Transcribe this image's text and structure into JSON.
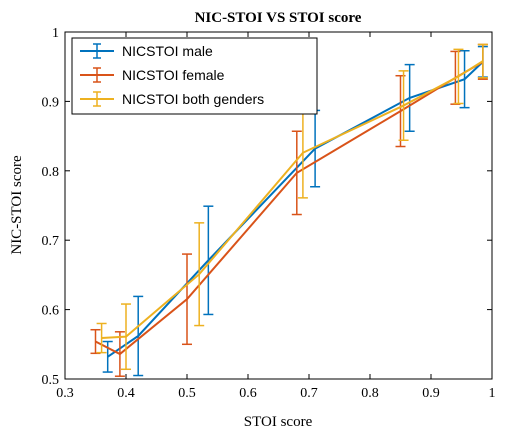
{
  "chart_data": {
    "type": "line",
    "title": "NIC-STOI VS STOI score",
    "xlabel": "STOI score",
    "ylabel": "NIC-STOI score",
    "xlim": [
      0.3,
      1
    ],
    "ylim": [
      0.5,
      1
    ],
    "xticks": [
      "0.3",
      "0.4",
      "0.5",
      "0.6",
      "0.7",
      "0.8",
      "0.9",
      "1"
    ],
    "yticks": [
      "0.5",
      "0.6",
      "0.7",
      "0.8",
      "0.9",
      "1"
    ],
    "legend_position": "top-left",
    "grid": false,
    "error_bars": true,
    "series": [
      {
        "name": "NICSTOI male",
        "color": "#0072BD",
        "x": [
          0.37,
          0.42,
          0.535,
          0.71,
          0.865,
          0.955,
          0.985
        ],
        "y": [
          0.532,
          0.562,
          0.671,
          0.832,
          0.905,
          0.932,
          0.957
        ],
        "err": [
          0.022,
          0.057,
          0.078,
          0.055,
          0.048,
          0.041,
          0.022
        ]
      },
      {
        "name": "NICSTOI female",
        "color": "#D95319",
        "x": [
          0.35,
          0.39,
          0.5,
          0.68,
          0.85,
          0.94,
          0.985
        ],
        "y": [
          0.554,
          0.536,
          0.615,
          0.797,
          0.886,
          0.934,
          0.957
        ],
        "err": [
          0.017,
          0.032,
          0.065,
          0.06,
          0.051,
          0.038,
          0.025
        ]
      },
      {
        "name": "NICSTOI both genders",
        "color": "#EDB120",
        "x": [
          0.36,
          0.4,
          0.52,
          0.69,
          0.855,
          0.945,
          0.985
        ],
        "y": [
          0.559,
          0.561,
          0.651,
          0.826,
          0.894,
          0.936,
          0.958
        ],
        "err": [
          0.021,
          0.047,
          0.074,
          0.065,
          0.05,
          0.039,
          0.024
        ]
      }
    ]
  }
}
